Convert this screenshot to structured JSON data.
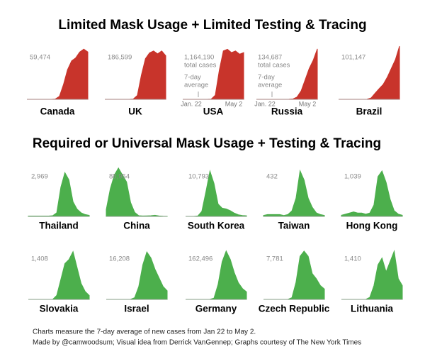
{
  "headings": [
    "Limited Mask Usage + Limited Testing & Tracing",
    "Required or Universal Mask Usage + Testing & Tracing"
  ],
  "footer": [
    "Charts measure the 7-day average of new cases from Jan 22 to May 2.",
    "Made by @camwoodsum; Visual idea from Derrick VanGennep; Graphs courtesy of The New York Times"
  ],
  "chart_data": [
    {
      "type": "area",
      "title": "Canada",
      "color": "#c8342b",
      "annotations": [
        "59,474"
      ],
      "ylim": [
        0,
        1800
      ],
      "values": [
        0,
        0,
        0,
        0,
        0,
        0,
        0,
        10,
        100,
        500,
        1000,
        1300,
        1400,
        1600,
        1700,
        1600
      ]
    },
    {
      "type": "area",
      "title": "UK",
      "color": "#c8342b",
      "annotations": [
        "186,599"
      ],
      "ylim": [
        0,
        5500
      ],
      "values": [
        0,
        0,
        0,
        0,
        0,
        0,
        2,
        30,
        400,
        2500,
        4200,
        4800,
        5000,
        4700,
        5000,
        4500
      ]
    },
    {
      "type": "area",
      "title": "USA",
      "color": "#c8342b",
      "annotations": [
        "1,164,190",
        "total cases",
        "7-day",
        "average"
      ],
      "x_labels": [
        "Jan. 22",
        "May 2"
      ],
      "ylim": [
        0,
        33000
      ],
      "values": [
        0,
        0,
        0,
        0,
        0,
        0,
        5,
        100,
        2500,
        18000,
        30000,
        31000,
        29000,
        30000,
        28000,
        29000
      ]
    },
    {
      "type": "area",
      "title": "Russia",
      "color": "#c8342b",
      "annotations": [
        "134,687",
        "total cases",
        "7-day",
        "average"
      ],
      "x_labels": [
        "Jan. 22",
        "May 2"
      ],
      "ylim": [
        0,
        9500
      ],
      "values": [
        0,
        0,
        0,
        0,
        0,
        0,
        0,
        0,
        10,
        60,
        400,
        1500,
        3500,
        5500,
        7000,
        9000
      ]
    },
    {
      "type": "area",
      "title": "Brazil",
      "color": "#c8342b",
      "annotations": [
        "101,147"
      ],
      "ylim": [
        0,
        6000
      ],
      "values": [
        0,
        0,
        0,
        0,
        0,
        0,
        0,
        5,
        150,
        700,
        1200,
        1700,
        2500,
        3500,
        4500,
        6000
      ]
    },
    {
      "type": "area",
      "title": "Thailand",
      "color": "#4caf4c",
      "annotations": [
        "2,969"
      ],
      "ylim": [
        0,
        140
      ],
      "values": [
        1,
        1,
        1,
        1,
        1,
        1,
        2,
        10,
        80,
        120,
        100,
        40,
        20,
        10,
        5,
        3
      ]
    },
    {
      "type": "area",
      "title": "China",
      "color": "#4caf4c",
      "annotations": [
        "88,954"
      ],
      "ylim": [
        0,
        3700
      ],
      "values": [
        500,
        2000,
        3000,
        3500,
        3000,
        2500,
        1000,
        300,
        50,
        30,
        40,
        50,
        80,
        30,
        10,
        5
      ]
    },
    {
      "type": "area",
      "title": "South Korea",
      "color": "#4caf4c",
      "annotations": [
        "10,793"
      ],
      "ylim": [
        0,
        620
      ],
      "values": [
        0,
        0,
        0,
        5,
        60,
        300,
        550,
        400,
        150,
        100,
        90,
        70,
        40,
        20,
        10,
        8
      ]
    },
    {
      "type": "area",
      "title": "Taiwan",
      "color": "#4caf4c",
      "annotations": [
        "432"
      ],
      "ylim": [
        0,
        28
      ],
      "values": [
        0.5,
        1,
        1,
        1,
        1,
        0.5,
        1,
        3,
        10,
        25,
        20,
        10,
        5,
        2,
        1,
        0.5
      ]
    },
    {
      "type": "area",
      "title": "Hong Kong",
      "color": "#4caf4c",
      "annotations": [
        "1,039"
      ],
      "ylim": [
        0,
        45
      ],
      "values": [
        1,
        2,
        3,
        4,
        3,
        3,
        2,
        3,
        10,
        35,
        40,
        30,
        15,
        5,
        2,
        1
      ]
    },
    {
      "type": "area",
      "title": "Slovakia",
      "color": "#4caf4c",
      "annotations": [
        "1,408"
      ],
      "ylim": [
        0,
        65
      ],
      "values": [
        0,
        0,
        0,
        0,
        0,
        0,
        0,
        5,
        25,
        45,
        50,
        60,
        40,
        20,
        10,
        5
      ]
    },
    {
      "type": "area",
      "title": "Israel",
      "color": "#4caf4c",
      "annotations": [
        "16,208"
      ],
      "ylim": [
        0,
        600
      ],
      "values": [
        0,
        0,
        0,
        0,
        0,
        0,
        1,
        20,
        150,
        400,
        550,
        480,
        350,
        250,
        150,
        100
      ]
    },
    {
      "type": "area",
      "title": "Germany",
      "color": "#4caf4c",
      "annotations": [
        "162,496"
      ],
      "ylim": [
        0,
        6200
      ],
      "values": [
        0,
        0,
        1,
        2,
        1,
        1,
        5,
        150,
        1800,
        4500,
        5800,
        4800,
        3200,
        2000,
        1300,
        900
      ]
    },
    {
      "type": "area",
      "title": "Czech Republic",
      "color": "#4caf4c",
      "annotations": [
        "7,781"
      ],
      "ylim": [
        0,
        300
      ],
      "values": [
        0,
        0,
        0,
        0,
        0,
        0,
        0,
        10,
        100,
        250,
        280,
        250,
        150,
        120,
        80,
        60
      ]
    },
    {
      "type": "area",
      "title": "Lithuania",
      "color": "#4caf4c",
      "annotations": [
        "1,410"
      ],
      "ylim": [
        0,
        75
      ],
      "values": [
        0,
        0,
        0,
        0,
        0,
        0,
        0,
        3,
        20,
        50,
        60,
        40,
        55,
        70,
        30,
        20
      ]
    }
  ]
}
